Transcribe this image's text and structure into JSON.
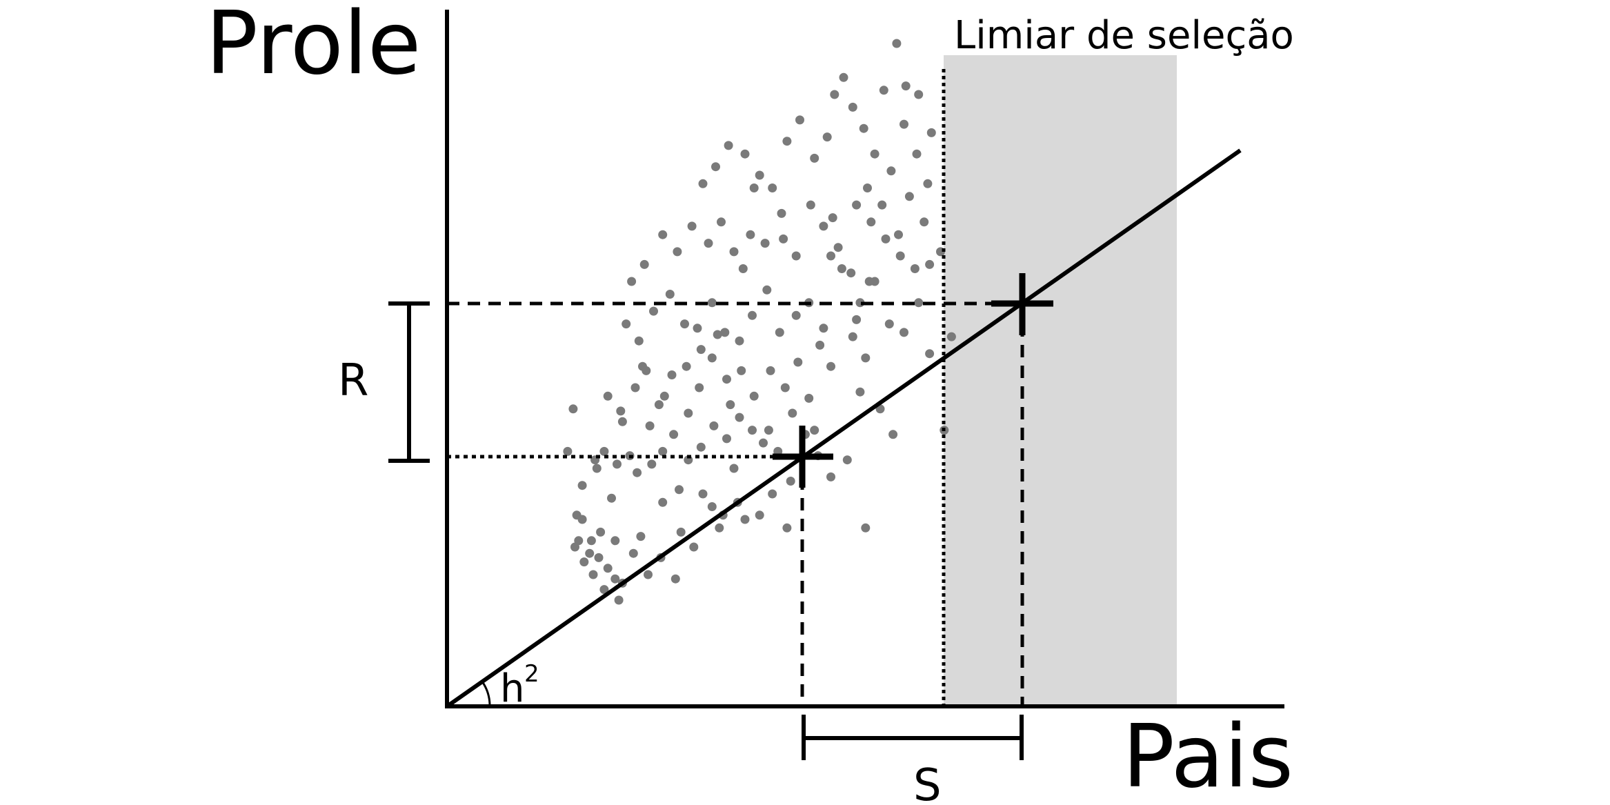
{
  "labels": {
    "y_axis": "Prole",
    "x_axis": "Pais",
    "threshold": "Limiar de seleção",
    "response": "R",
    "selection_differential": "S",
    "heritability_base": "h",
    "heritability_exponent": "2"
  },
  "colors": {
    "points": "#7a7a7a",
    "selected_region": "#d9d9d9",
    "lines": "#000000"
  },
  "scatter_points": [
    [
      70,
      75
    ],
    [
      72,
      78
    ],
    [
      75,
      68
    ],
    [
      78,
      72
    ],
    [
      80,
      62
    ],
    [
      84,
      82
    ],
    [
      83,
      70
    ],
    [
      88,
      65
    ],
    [
      92,
      60
    ],
    [
      96,
      58
    ],
    [
      71,
      90
    ],
    [
      74,
      88
    ],
    [
      79,
      78
    ],
    [
      86,
      55
    ],
    [
      94,
      50
    ],
    [
      102,
      72
    ],
    [
      106,
      80
    ],
    [
      110,
      62
    ],
    [
      117,
      70
    ],
    [
      125,
      60
    ],
    [
      128,
      82
    ],
    [
      135,
      75
    ],
    [
      140,
      100
    ],
    [
      145,
      94
    ],
    [
      151,
      90
    ],
    [
      159,
      96
    ],
    [
      163,
      88
    ],
    [
      171,
      90
    ],
    [
      178,
      100
    ],
    [
      186,
      84
    ],
    [
      82,
      112
    ],
    [
      86,
      120
    ],
    [
      93,
      114
    ],
    [
      100,
      118
    ],
    [
      104,
      110
    ],
    [
      112,
      114
    ],
    [
      118,
      120
    ],
    [
      124,
      128
    ],
    [
      132,
      116
    ],
    [
      139,
      122
    ],
    [
      146,
      132
    ],
    [
      153,
      126
    ],
    [
      160,
      136
    ],
    [
      167,
      130
    ],
    [
      173,
      124
    ],
    [
      181,
      120
    ],
    [
      189,
      138
    ],
    [
      196,
      128
    ],
    [
      203,
      118
    ],
    [
      210,
      108
    ],
    [
      88,
      146
    ],
    [
      95,
      139
    ],
    [
      103,
      150
    ],
    [
      109,
      158
    ],
    [
      116,
      142
    ],
    [
      123,
      156
    ],
    [
      131,
      160
    ],
    [
      138,
      150
    ],
    [
      145,
      164
    ],
    [
      153,
      154
    ],
    [
      161,
      158
    ],
    [
      168,
      146
    ],
    [
      177,
      158
    ],
    [
      185,
      150
    ],
    [
      192,
      162
    ],
    [
      198,
      145
    ],
    [
      204,
      170
    ],
    [
      210,
      160
    ],
    [
      98,
      180
    ],
    [
      105,
      172
    ],
    [
      113,
      186
    ],
    [
      122,
      194
    ],
    [
      130,
      180
    ],
    [
      137,
      178
    ],
    [
      145,
      190
    ],
    [
      152,
      176
    ],
    [
      160,
      172
    ],
    [
      167,
      184
    ],
    [
      175,
      196
    ],
    [
      182,
      176
    ],
    [
      191,
      184
    ],
    [
      198,
      190
    ],
    [
      108,
      208
    ],
    [
      118,
      222
    ],
    [
      126,
      214
    ],
    [
      134,
      226
    ],
    [
      143,
      218
    ],
    [
      150,
      228
    ],
    [
      157,
      214
    ],
    [
      166,
      222
    ],
    [
      174,
      218
    ],
    [
      183,
      232
    ],
    [
      191,
      212
    ],
    [
      199,
      236
    ],
    [
      206,
      226
    ],
    [
      210,
      212
    ],
    [
      140,
      246
    ],
    [
      147,
      254
    ],
    [
      154,
      264
    ],
    [
      163,
      260
    ],
    [
      171,
      250
    ],
    [
      178,
      244
    ],
    [
      186,
      266
    ],
    [
      193,
      276
    ],
    [
      201,
      258
    ],
    [
      208,
      268
    ],
    [
      211,
      230
    ],
    [
      214,
      216
    ],
    [
      222,
      282
    ],
    [
      228,
      272
    ],
    [
      216,
      206
    ],
    [
      222,
      174
    ],
    [
      226,
      148
    ],
    [
      230,
      244
    ],
    [
      234,
      260
    ],
    [
      238,
      236
    ],
    [
      243,
      252
    ],
    [
      250,
      274
    ],
    [
      257,
      260
    ],
    [
      263,
      246
    ],
    [
      217,
      296
    ],
    [
      224,
      236
    ],
    [
      232,
      228
    ],
    [
      240,
      220
    ],
    [
      248,
      212
    ],
    [
      256,
      206
    ],
    [
      226,
      190
    ],
    [
      234,
      200
    ],
    [
      242,
      180
    ],
    [
      250,
      176
    ],
    [
      258,
      190
    ],
    [
      264,
      166
    ],
    [
      270,
      214
    ],
    [
      276,
      174
    ],
    [
      246,
      312
    ],
    [
      251,
      292
    ],
    [
      258,
      288
    ],
    [
      265,
      270
    ],
    [
      244,
      128
    ],
    [
      237,
      140
    ],
    [
      219,
      116
    ],
    [
      229,
      84
    ],
    [
      264,
      208
    ],
    [
      272,
      130
    ],
    [
      148,
      175
    ],
    [
      96,
      134
    ],
    [
      111,
      132
    ],
    [
      66,
      120
    ],
    [
      74,
      104
    ],
    [
      81,
      116
    ],
    [
      69,
      140
    ],
    [
      90,
      98
    ],
    [
      132,
      138
    ],
    [
      139,
      168
    ],
    [
      92,
      78
    ],
    [
      118,
      96
    ],
    [
      157,
      112
    ],
    [
      162,
      206
    ],
    [
      184,
      220
    ],
    [
      168,
      244
    ],
    [
      201,
      130
    ],
    [
      206,
      178
    ],
    [
      247,
      222
    ],
    [
      231,
      200
    ],
    [
      221,
      204
    ],
    [
      253,
      240
    ],
    [
      119,
      146
    ],
    [
      101,
      200
    ],
    [
      107,
      160
    ],
    [
      127,
      102
    ],
    [
      155,
      142
    ],
    [
      149,
      84
    ],
    [
      188,
      106
    ],
    [
      176,
      130
    ],
    [
      212,
      288
    ],
    [
      239,
      290
    ],
    [
      229,
      164
    ],
    [
      224,
      182
    ],
    [
      261,
      228
    ]
  ]
}
